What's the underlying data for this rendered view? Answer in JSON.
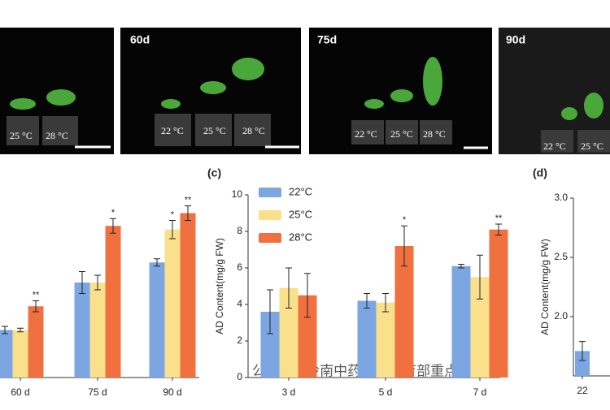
{
  "photos": [
    {
      "temps": [
        "25 °C",
        "28 °C"
      ]
    },
    {
      "label": "60d",
      "temps": [
        "22 °C",
        "25 °C",
        "28 °C"
      ]
    },
    {
      "label": "75d",
      "temps": [
        "22 °C",
        "25 °C",
        "28 °C"
      ]
    },
    {
      "label": "90d",
      "temps": [
        "22 °C",
        "25 °C"
      ]
    }
  ],
  "watermark": "公众号 · 岭南中药资源教育部重点",
  "chart_data": [
    {
      "type": "bar",
      "categories": [
        "60 d",
        "75 d",
        "90 d"
      ],
      "ylim": [
        0,
        10
      ],
      "series": [
        {
          "color": "#7ba6e2",
          "values": [
            2.6,
            5.2,
            6.3
          ],
          "errors": [
            0.2,
            0.6,
            0.2
          ],
          "significance": [
            null,
            null,
            null
          ]
        },
        {
          "color": "#fbe08c",
          "values": [
            2.6,
            5.2,
            8.1
          ],
          "errors": [
            0.1,
            0.4,
            0.5
          ],
          "significance": [
            null,
            null,
            "*"
          ]
        },
        {
          "color": "#f07040",
          "values": [
            3.9,
            8.3,
            9.0
          ],
          "errors": [
            0.3,
            0.4,
            0.4
          ],
          "significance": [
            "**",
            "*",
            "**"
          ]
        }
      ]
    },
    {
      "type": "bar",
      "panel": "(c)",
      "ylabel": "AD Content(mg/g FW)",
      "categories": [
        "3 d",
        "5 d",
        "7 d"
      ],
      "ylim": [
        0,
        10
      ],
      "yticks": [
        0,
        2,
        4,
        6,
        8,
        10
      ],
      "series": [
        {
          "name": "22°C",
          "color": "#7ba6e2",
          "values": [
            3.6,
            4.2,
            6.1
          ],
          "errors": [
            1.2,
            0.4,
            0.1
          ],
          "significance": [
            null,
            null,
            null
          ]
        },
        {
          "name": "25°C",
          "color": "#fbe08c",
          "values": [
            4.9,
            4.1,
            5.5
          ],
          "errors": [
            1.1,
            0.5,
            1.2
          ],
          "significance": [
            null,
            null,
            null
          ]
        },
        {
          "name": "28°C",
          "color": "#f07040",
          "values": [
            4.5,
            7.2,
            8.1
          ],
          "errors": [
            1.2,
            1.1,
            0.3
          ],
          "significance": [
            null,
            "*",
            "**"
          ]
        }
      ]
    },
    {
      "type": "bar",
      "panel": "(d)",
      "ylabel": "AD Content(mg/g FW)",
      "categories": [
        "22"
      ],
      "ylim": [
        1.5,
        3.0
      ],
      "yticks": [
        {
          "value": 2.0,
          "label": "2.0"
        },
        {
          "value": 2.5,
          "label": "2.5"
        },
        {
          "value": 3.0,
          "label": "3.0"
        }
      ],
      "series": [
        {
          "color": "#7ba6e2",
          "values": [
            1.71
          ],
          "errors": [
            0.08
          ],
          "significance": [
            null
          ]
        }
      ]
    }
  ]
}
